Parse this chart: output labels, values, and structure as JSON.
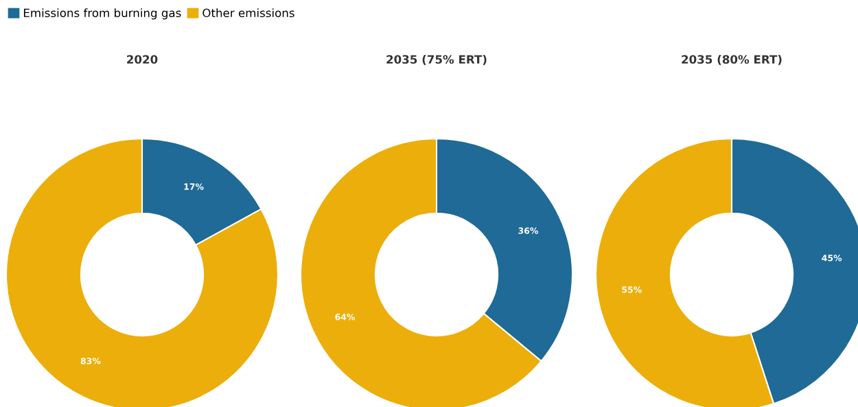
{
  "chart_data": [
    {
      "type": "donut",
      "title": "2020",
      "categories": [
        "Emissions from burning gas",
        "Other emissions"
      ],
      "values": [
        17,
        83
      ],
      "value_labels": [
        "17%",
        "83%"
      ],
      "colors": [
        "#1f6a96",
        "#ebae0b"
      ],
      "legend": "top left"
    },
    {
      "type": "donut",
      "title": "2035 (75% ERT)",
      "categories": [
        null,
        null
      ],
      "values": [
        36,
        64
      ],
      "value_labels": [
        "36%",
        "64%"
      ],
      "colors": [
        "#1f6a96",
        "#ebae0b"
      ]
    },
    {
      "type": "donut",
      "title": "2035 (80% ERT)",
      "categories": [
        null,
        null
      ],
      "values": [
        45,
        55
      ],
      "value_labels": [
        "45%",
        "55%"
      ],
      "colors": [
        "#1f6a96",
        "#ebae0b"
      ]
    }
  ]
}
